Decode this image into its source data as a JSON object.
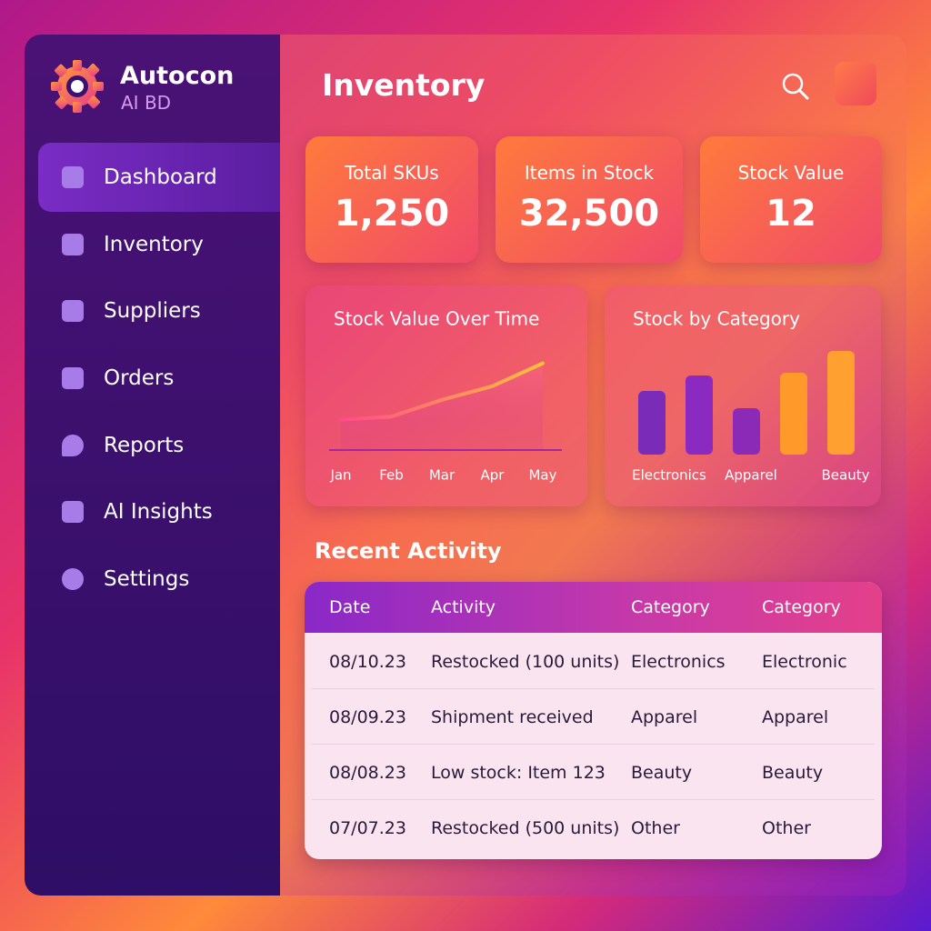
{
  "brand": {
    "name": "Autocon",
    "subtitle": "AI BD"
  },
  "nav": [
    "Dashboard",
    "Inventory",
    "Suppliers",
    "Orders",
    "Reports",
    "AI Insights",
    "Settings"
  ],
  "header": {
    "title": "Inventory"
  },
  "kpis": [
    {
      "label": "Total SKUs",
      "value": "1,250"
    },
    {
      "label": "Items in Stock",
      "value": "32,500"
    },
    {
      "label": "Stock Value",
      "value": "12"
    }
  ],
  "chart_data": [
    {
      "type": "line",
      "title": "Stock Value Over Time",
      "categories": [
        "Jan",
        "Feb",
        "Mar",
        "Apr",
        "May"
      ],
      "values": [
        29,
        32,
        48,
        61,
        83
      ],
      "ylim": [
        0,
        100
      ],
      "color": "#ff9a3c"
    },
    {
      "type": "bar",
      "title": "Stock by Category",
      "categories": [
        "Electronics",
        null,
        "Apparel",
        null,
        "Beauty"
      ],
      "values": [
        70,
        87,
        51,
        90,
        114
      ],
      "ylim": [
        0,
        120
      ],
      "colors": [
        "#7a2bb8",
        "#8a2ac0",
        "#8a2ab6",
        "#ff9a2a",
        "#ffa030"
      ]
    }
  ],
  "activity": {
    "title": "Recent Activity",
    "columns": [
      "Date",
      "Activity",
      "Category",
      "Category"
    ],
    "rows": [
      [
        "08/10.23",
        "Restocked (100 units)",
        "Electronics",
        "Electronic"
      ],
      [
        "08/09.23",
        "Shipment received",
        "Apparel",
        "Apparel"
      ],
      [
        "08/08.23",
        "Low stock: Item 123",
        "Beauty",
        "Beauty"
      ],
      [
        "07/07.23",
        "Restocked (500 units)",
        "Other",
        "Other"
      ]
    ]
  }
}
